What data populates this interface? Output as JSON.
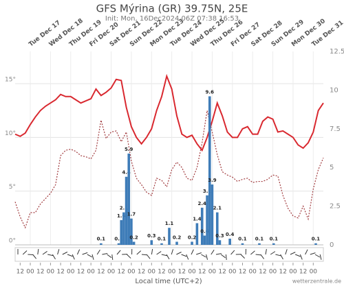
{
  "chart_data": {
    "type": "line",
    "title": "GFS Mýrina (GR) 39.75N, 25E",
    "subtitle": "Init: Mon, 16Dec2024 06Z 07:38 16:53",
    "x_label": "Local time (UTC+2)",
    "credit": "wetterzentrale.de",
    "grid": true,
    "x": [
      6,
      12,
      18,
      24,
      30,
      36,
      42,
      48,
      54,
      60,
      66,
      72,
      78,
      84,
      90,
      96,
      102,
      108,
      114,
      120,
      126,
      132,
      138,
      144,
      150,
      156,
      162,
      168,
      174,
      180,
      186,
      192,
      198,
      204,
      210,
      216,
      222,
      228,
      234,
      240,
      246,
      252,
      258,
      264,
      270,
      276,
      282,
      288,
      294,
      300,
      306,
      312,
      318,
      324,
      330,
      336,
      342,
      348,
      354,
      360,
      366,
      372
    ],
    "xlim": [
      6,
      372
    ],
    "xticks": [
      {
        "value": 12,
        "label": "12"
      },
      {
        "value": 24,
        "label": "00"
      },
      {
        "value": 36,
        "label": "12"
      },
      {
        "value": 48,
        "label": "00"
      },
      {
        "value": 60,
        "label": "12"
      },
      {
        "value": 72,
        "label": "00"
      },
      {
        "value": 84,
        "label": "12"
      },
      {
        "value": 96,
        "label": "00"
      },
      {
        "value": 108,
        "label": "12"
      },
      {
        "value": 120,
        "label": "00"
      },
      {
        "value": 132,
        "label": "12"
      },
      {
        "value": 144,
        "label": "00"
      },
      {
        "value": 156,
        "label": "12"
      },
      {
        "value": 168,
        "label": "00"
      },
      {
        "value": 180,
        "label": "12"
      },
      {
        "value": 192,
        "label": "00"
      },
      {
        "value": 204,
        "label": "12"
      },
      {
        "value": 216,
        "label": "00"
      },
      {
        "value": 228,
        "label": "12"
      },
      {
        "value": 240,
        "label": "00"
      },
      {
        "value": 252,
        "label": "12"
      },
      {
        "value": 264,
        "label": "00"
      },
      {
        "value": 276,
        "label": "12"
      },
      {
        "value": 288,
        "label": "00"
      },
      {
        "value": 300,
        "label": "12"
      },
      {
        "value": 312,
        "label": "00"
      },
      {
        "value": 324,
        "label": "12"
      },
      {
        "value": 336,
        "label": "00"
      },
      {
        "value": 348,
        "label": "12"
      },
      {
        "value": 360,
        "label": "00"
      }
    ],
    "xticks_top": [
      {
        "value": 24,
        "label": "Tue Dec 17"
      },
      {
        "value": 48,
        "label": "Wed Dec 18"
      },
      {
        "value": 72,
        "label": "Thu Dec 19"
      },
      {
        "value": 96,
        "label": "Fri Dec 20"
      },
      {
        "value": 120,
        "label": "Sat Dec 21"
      },
      {
        "value": 144,
        "label": "Sun Dec 22"
      },
      {
        "value": 168,
        "label": "Mon Dec 23"
      },
      {
        "value": 192,
        "label": "Tue Dec 24"
      },
      {
        "value": 216,
        "label": "Wed Dec 25"
      },
      {
        "value": 240,
        "label": "Thu Dec 26"
      },
      {
        "value": 264,
        "label": "Fri Dec 27"
      },
      {
        "value": 288,
        "label": "Sat Dec 28"
      },
      {
        "value": 312,
        "label": "Sun Dec 29"
      },
      {
        "value": 336,
        "label": "Mon Dec 30"
      },
      {
        "value": 360,
        "label": "Tue Dec 31"
      }
    ],
    "ylim": [
      0,
      18
    ],
    "yticks": [
      {
        "value": 0,
        "label": "0°"
      },
      {
        "value": 5,
        "label": "5°"
      },
      {
        "value": 10,
        "label": "10°"
      },
      {
        "value": 15,
        "label": "15°"
      }
    ],
    "y2lim": [
      0,
      12.5
    ],
    "y2ticks": [
      0,
      2.5,
      5,
      7.5,
      10,
      12.5
    ],
    "series": [
      {
        "type": "line",
        "color": "#d9282f",
        "dash": false,
        "values": [
          10.3,
          10.1,
          10.4,
          11.2,
          11.9,
          12.5,
          12.9,
          13.2,
          13.5,
          14.0,
          13.8,
          13.8,
          13.5,
          13.2,
          13.4,
          13.6,
          14.5,
          13.9,
          14.2,
          14.6,
          15.4,
          15.3,
          12.8,
          11.0,
          10.0,
          9.4,
          10.0,
          10.8,
          12.5,
          13.8,
          15.7,
          14.5,
          12.0,
          10.3,
          10.0,
          10.2,
          9.4,
          8.8,
          10.0,
          11.5,
          13.2,
          12.0,
          10.5,
          10.0,
          10.0,
          10.8,
          11.0,
          10.3,
          10.3,
          11.5,
          11.9,
          11.7,
          10.5,
          10.6,
          10.3,
          10.0,
          9.3,
          9.0,
          9.5,
          10.5,
          12.5,
          13.2
        ]
      },
      {
        "type": "line",
        "color": "#a0393c",
        "dash": true,
        "values": [
          4.0,
          2.6,
          1.6,
          3.0,
          3.0,
          3.8,
          4.3,
          4.8,
          5.6,
          8.3,
          8.8,
          8.9,
          8.7,
          8.3,
          8.2,
          8.0,
          8.8,
          11.6,
          9.9,
          10.5,
          10.6,
          9.6,
          10.5,
          7.8,
          6.2,
          5.6,
          4.9,
          4.6,
          6.2,
          6.0,
          5.4,
          7.0,
          7.7,
          7.2,
          6.2,
          6.0,
          7.2,
          9.5,
          12.5,
          10.5,
          8.4,
          6.8,
          6.5,
          6.3,
          5.9,
          6.1,
          6.2,
          5.8,
          5.9,
          5.9,
          6.1,
          6.5,
          6.4,
          4.6,
          3.4,
          2.7,
          2.5,
          3.6,
          2.4,
          5.2,
          7.0,
          8.1
        ]
      },
      {
        "type": "bar",
        "axis": "y2",
        "color": "#3e7cb8",
        "x": [
          108,
          129,
          132,
          135,
          138,
          141,
          144,
          147,
          168,
          180,
          189,
          198,
          216,
          222,
          228,
          231,
          234,
          237,
          240,
          246,
          249,
          261,
          276,
          296,
          313,
          363
        ],
        "values": [
          0.1,
          0.1,
          1.6,
          2.1,
          4.4,
          5.9,
          1.7,
          0.2,
          0.3,
          0.1,
          1.1,
          0.2,
          0.2,
          1.4,
          2.4,
          0.6,
          3.2,
          9.6,
          3.9,
          2.1,
          0.3,
          0.4,
          0.1,
          0.1,
          0.1,
          0.1
        ]
      }
    ]
  }
}
